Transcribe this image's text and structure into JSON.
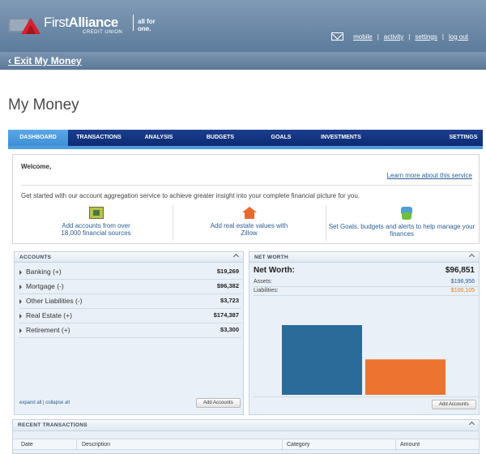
{
  "header": {
    "brand_first": "First",
    "brand_alliance": "Alliance",
    "brand_sub": "CREDIT UNION",
    "tagline": "all for one.",
    "links": [
      "mobile",
      "activity",
      "settings",
      "log out"
    ]
  },
  "exit_label": "Exit My Money",
  "page_title": "My Money",
  "nav": {
    "items": [
      "DASHBOARD",
      "TRANSACTIONS",
      "ANALYSIS",
      "BUDGETS",
      "GOALS",
      "INVESTMENTS",
      "SETTINGS"
    ],
    "active": "DASHBOARD"
  },
  "welcome": {
    "title": "Welcome,",
    "learn_link": "Learn more about this service",
    "intro": "Get started with our account aggregation service to achieve greater insight into your complete financial picture for you.",
    "features": [
      {
        "line1": "Add accounts from over",
        "line2": "18,000 financial sources"
      },
      {
        "line1": "Add real estate values with",
        "line2": "Zillow"
      },
      {
        "line1": "Set Goals, budgets and alerts to help manage your",
        "line2": "finances"
      }
    ]
  },
  "accounts": {
    "title": "ACCOUNTS",
    "rows": [
      {
        "label": "Banking (+)",
        "value": "$19,269"
      },
      {
        "label": "Mortgage (-)",
        "value": "$96,382"
      },
      {
        "label": "Other Liabilities (-)",
        "value": "$3,723"
      },
      {
        "label": "Real Estate (+)",
        "value": "$174,387"
      },
      {
        "label": "Retirement (+)",
        "value": "$3,300"
      }
    ],
    "expand_all": "expand all",
    "collapse_all": "collapse all",
    "add_button": "Add Accounts"
  },
  "net_worth": {
    "title": "NET WORTH",
    "label": "Net Worth:",
    "total": "$96,851",
    "assets_label": "Assets:",
    "assets_value": "$196,956",
    "liabilities_label": "Liabilities:",
    "liabilities_value": "$100,105",
    "add_button": "Add Accounts",
    "colors": {
      "assets": "#2b6b9a",
      "liabilities": "#ec7330",
      "liab_text": "#e87c1e",
      "assets_text": "#2b5e96"
    }
  },
  "chart_data": {
    "type": "bar",
    "categories": [
      "Assets",
      "Liabilities"
    ],
    "values": [
      196956,
      100105
    ],
    "title": "",
    "xlabel": "",
    "ylabel": "",
    "ylim": [
      0,
      196956
    ]
  },
  "recent": {
    "title": "RECENT TRANSACTIONS",
    "columns": [
      "Date",
      "Description",
      "Category",
      "Amount"
    ]
  }
}
